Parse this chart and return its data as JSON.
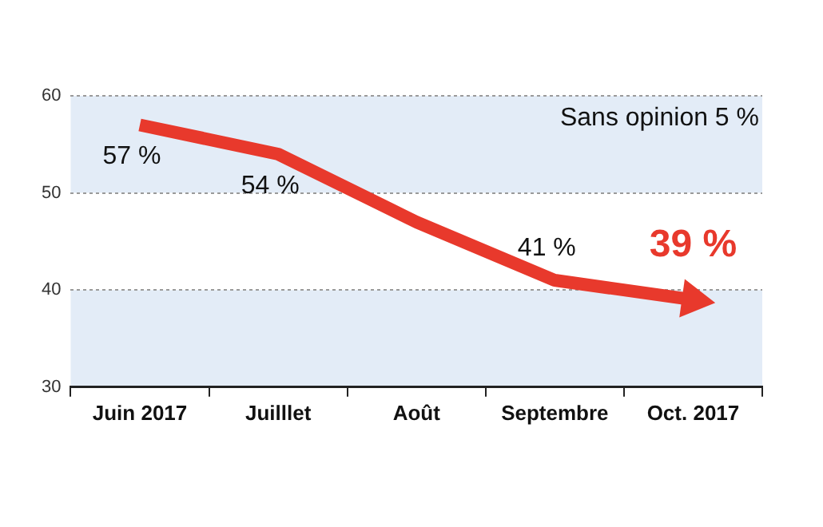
{
  "chart_data": {
    "type": "line",
    "categories": [
      "Juin 2017",
      "Juilllet",
      "Août",
      "Septembre",
      "Oct. 2017"
    ],
    "series": [
      {
        "color": "#e8392c",
        "values": [
          57,
          54,
          47,
          41,
          39
        ],
        "value_labels": [
          "57 %",
          "54 %",
          null,
          "41 %",
          "39 %"
        ]
      }
    ],
    "ylim": [
      30,
      60
    ],
    "yticks": [
      30,
      40,
      50,
      60
    ],
    "grid": "y",
    "line_style": "solid",
    "bands": [
      {
        "axis": "y",
        "from": 50,
        "to": 60,
        "color": "#e3ecf7"
      },
      {
        "axis": "y",
        "from": 30,
        "to": 40,
        "color": "#e3ecf7"
      }
    ],
    "annotations": [
      "Sans opinion 5 %"
    ]
  }
}
